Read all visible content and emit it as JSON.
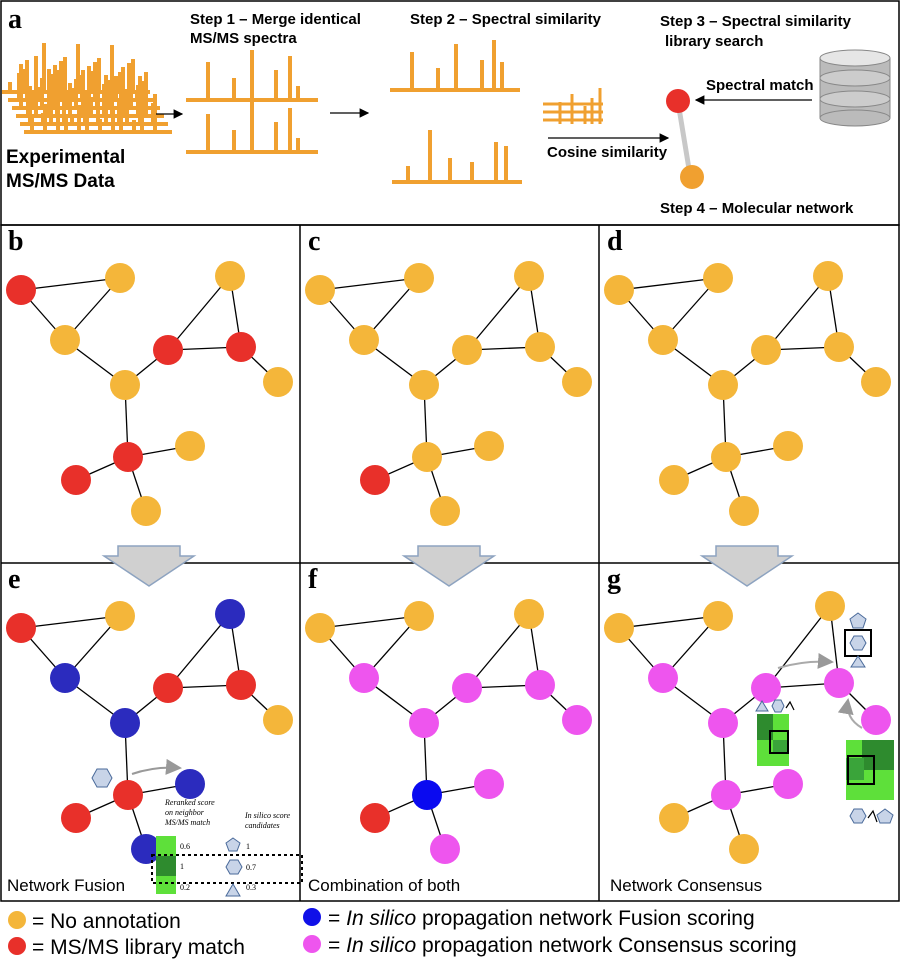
{
  "panel_labels": {
    "a": "a",
    "b": "b",
    "c": "c",
    "d": "d",
    "e": "e",
    "f": "f",
    "g": "g"
  },
  "steps": {
    "experimental_line1": "Experimental",
    "experimental_line2": "MS/MS Data",
    "step1_line1": "Step 1 – Merge identical",
    "step1_line2": "MS/MS spectra",
    "step2": "Step 2 – Spectral similarity",
    "step3_line1": "Step 3 – Spectral similarity",
    "step3_line2": "library search",
    "step4": "Step 4 – Molecular network",
    "spectral_match": "Spectral match",
    "cosine_similarity": "Cosine similarity"
  },
  "captions": {
    "e": "Network Fusion",
    "f": "Combination of both",
    "g": "Network Consensus"
  },
  "fusion_inset": {
    "reranked_line1": "Reranked score",
    "reranked_line2": "on neighbor",
    "reranked_line3": "MS/MS match",
    "insilico_line1": "In silico score",
    "insilico_line2": "candidates",
    "left_scores": [
      "0.6",
      "1",
      "0.2"
    ],
    "right_scores": [
      "1",
      "0.7",
      "0.3"
    ]
  },
  "legend": {
    "no_annotation": "= No annotation",
    "library_match": "= MS/MS library match",
    "fusion_italic": "In silico",
    "fusion_rest": " propagation network Fusion scoring",
    "consensus_italic": "In silico",
    "consensus_rest": " propagation network Consensus scoring",
    "eq": "= "
  },
  "colors": {
    "no_annotation": "#F4B63A",
    "library_match": "#E8302A",
    "fusion": "#2B2BBE",
    "consensus": "#EE55EE",
    "spectrum": "#F0A030",
    "arrow_fill": "#D0D0D0",
    "green": "#5EE03A"
  },
  "networks": {
    "b": [
      "red",
      "orange",
      "orange",
      "orange",
      "orange",
      "red",
      "red",
      "orange",
      "red",
      "orange",
      "red",
      "orange"
    ],
    "c": [
      "orange",
      "orange",
      "orange",
      "orange",
      "orange",
      "orange",
      "orange",
      "orange",
      "orange",
      "orange",
      "red",
      "orange"
    ],
    "d": [
      "orange",
      "orange",
      "orange",
      "orange",
      "orange",
      "orange",
      "orange",
      "orange",
      "orange",
      "orange",
      "orange",
      "orange"
    ],
    "e": [
      "red",
      "orange",
      "blue",
      "blue",
      "blue",
      "red",
      "red",
      "orange",
      "red",
      "blue",
      "red",
      "blue"
    ],
    "f": [
      "orange",
      "orange",
      "magenta",
      "magenta",
      "orange",
      "magenta",
      "magenta",
      "magenta",
      "blue",
      "magenta",
      "red",
      "magenta"
    ],
    "g": [
      "orange",
      "orange",
      "magenta",
      "magenta",
      "orange",
      "magenta",
      "magenta",
      "magenta",
      "magenta",
      "magenta",
      "orange",
      "orange"
    ]
  }
}
